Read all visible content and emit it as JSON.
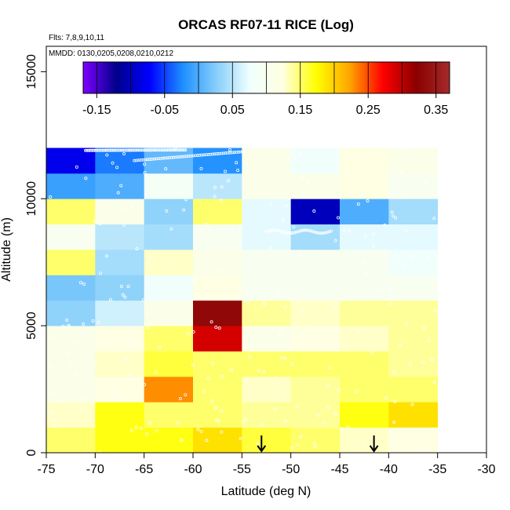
{
  "chart_data": {
    "type": "heatmap",
    "title": "ORCAS RF07-11 RICE (Log)",
    "annotations": {
      "flights": "Flts: 7,8,9,10,11",
      "dates": "MMDD: 0130,0205,0208,0210,0212"
    },
    "xlabel": "Latitude (deg N)",
    "ylabel": "Altitude (m)",
    "xlim": [
      -75,
      -30
    ],
    "ylim": [
      0,
      16000
    ],
    "xticks": [
      -75,
      -70,
      -65,
      -60,
      -55,
      -50,
      -45,
      -40,
      -35,
      -30
    ],
    "xtick_labels": [
      "-75",
      "-70",
      "-65",
      "-60",
      "-55",
      "-50",
      "-45",
      "-40",
      "-35",
      "-30"
    ],
    "yticks": [
      0,
      5000,
      10000,
      15000
    ],
    "ytick_labels": [
      "0",
      "5000",
      "10000",
      "15000"
    ],
    "colorbar": {
      "range": [
        -0.17,
        0.37
      ],
      "ticks": [
        -0.15,
        -0.05,
        0.05,
        0.15,
        0.25,
        0.35
      ],
      "tick_labels": [
        "-0.15",
        "-0.05",
        "0.05",
        "0.15",
        "0.25",
        "0.35"
      ],
      "stops": [
        "#7f00ff",
        "#00008b",
        "#0000ff",
        "#1e90ff",
        "#87cefa",
        "#f0ffff",
        "#ffffe0",
        "#ffff00",
        "#ffa500",
        "#ff0000",
        "#8b0000",
        "#a52a2a"
      ]
    },
    "lat_edges": [
      -75,
      -70,
      -65,
      -60,
      -55,
      -50,
      -45,
      -40,
      -35
    ],
    "alt_edges": [
      0,
      1000,
      2000,
      3000,
      4000,
      5000,
      6000,
      7000,
      8000,
      9000,
      10000,
      11000,
      12000
    ],
    "cell_values": [
      [
        0.15,
        0.17,
        0.17,
        0.19,
        0.16,
        0.15,
        0.13,
        0.12
      ],
      [
        0.13,
        0.17,
        0.15,
        0.15,
        0.14,
        0.14,
        0.17,
        0.19
      ],
      [
        0.11,
        0.12,
        0.23,
        0.15,
        0.13,
        0.14,
        0.15,
        0.15
      ],
      [
        0.11,
        0.13,
        0.16,
        0.15,
        0.15,
        0.15,
        0.15,
        0.14
      ],
      [
        0.11,
        0.12,
        0.15,
        0.29,
        0.11,
        0.12,
        0.13,
        0.14
      ],
      [
        0.03,
        0.06,
        0.11,
        0.33,
        0.14,
        0.13,
        0.14,
        0.14
      ],
      [
        0.02,
        0.03,
        0.08,
        0.12,
        0.1,
        0.1,
        0.1,
        0.1
      ],
      [
        0.15,
        0.04,
        0.13,
        0.11,
        0.1,
        0.1,
        0.1,
        0.08
      ],
      [
        0.1,
        0.05,
        0.04,
        0.1,
        0.07,
        0.04,
        0.07,
        0.07
      ],
      [
        0.15,
        0.11,
        0.03,
        0.15,
        0.07,
        -0.1,
        0.0,
        0.04
      ],
      [
        -0.01,
        0.0,
        0.09,
        0.05,
        0.11,
        0.11,
        0.12,
        0.1
      ],
      [
        -0.08,
        -0.03,
        0.01,
        -0.02,
        0.11,
        0.08,
        0.12,
        0.11
      ]
    ],
    "arrows_latitude": [
      -53,
      -41.5
    ]
  }
}
